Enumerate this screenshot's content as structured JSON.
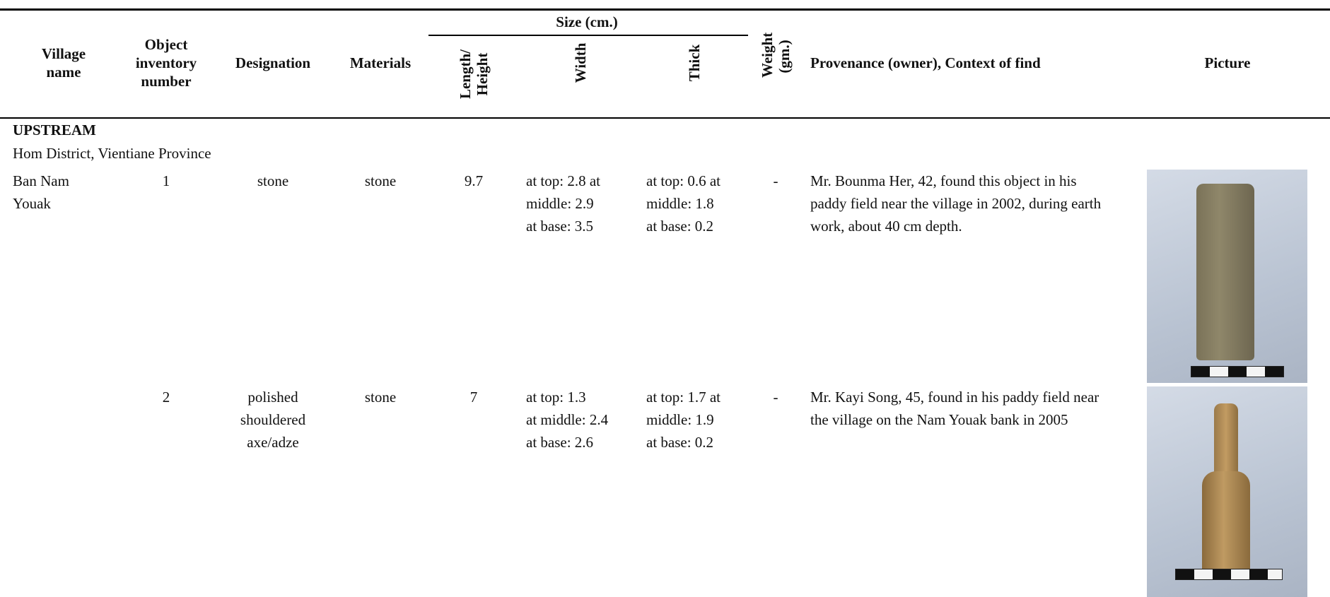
{
  "table": {
    "header": {
      "village": "Village name",
      "inventory": "Object inventory number",
      "designation": "Designation",
      "materials": "Materials",
      "size": "Size (cm.)",
      "length": "Length/ Height",
      "width": "Width",
      "thick": "Thick",
      "weight": "Weight (gm.)",
      "provenance": "Provenance (owner), Context of find",
      "picture": "Picture"
    },
    "section": "UPSTREAM",
    "subsection": "Hom District, Vientiane Province",
    "rows": [
      {
        "village": "Ban Nam Youak",
        "inventory": 1,
        "designation": "stone",
        "materials": "stone",
        "length": 9.7,
        "width": [
          "at top: 2.8 at middle: 2.9",
          "at base: 3.5"
        ],
        "thick": [
          "at top: 0.6 at middle: 1.8",
          "at base: 0.2"
        ],
        "weight": "-",
        "provenance": "Mr. Bounma Her, 42, found this object in his paddy field near the village in 2002, during earth work, about 40 cm depth."
      },
      {
        "inventory": 2,
        "designation": "polished shouldered axe/adze",
        "materials": "stone",
        "length": 7,
        "width": [
          "at top: 1.3",
          "at middle: 2.4",
          "at base: 2.6"
        ],
        "thick": [
          "at top: 1.7 at middle: 1.9",
          "at base: 0.2"
        ],
        "weight": "-",
        "provenance": "Mr. Kayi Song, 45, found in his paddy field near the village on the Nam Youak bank in 2005"
      }
    ]
  }
}
